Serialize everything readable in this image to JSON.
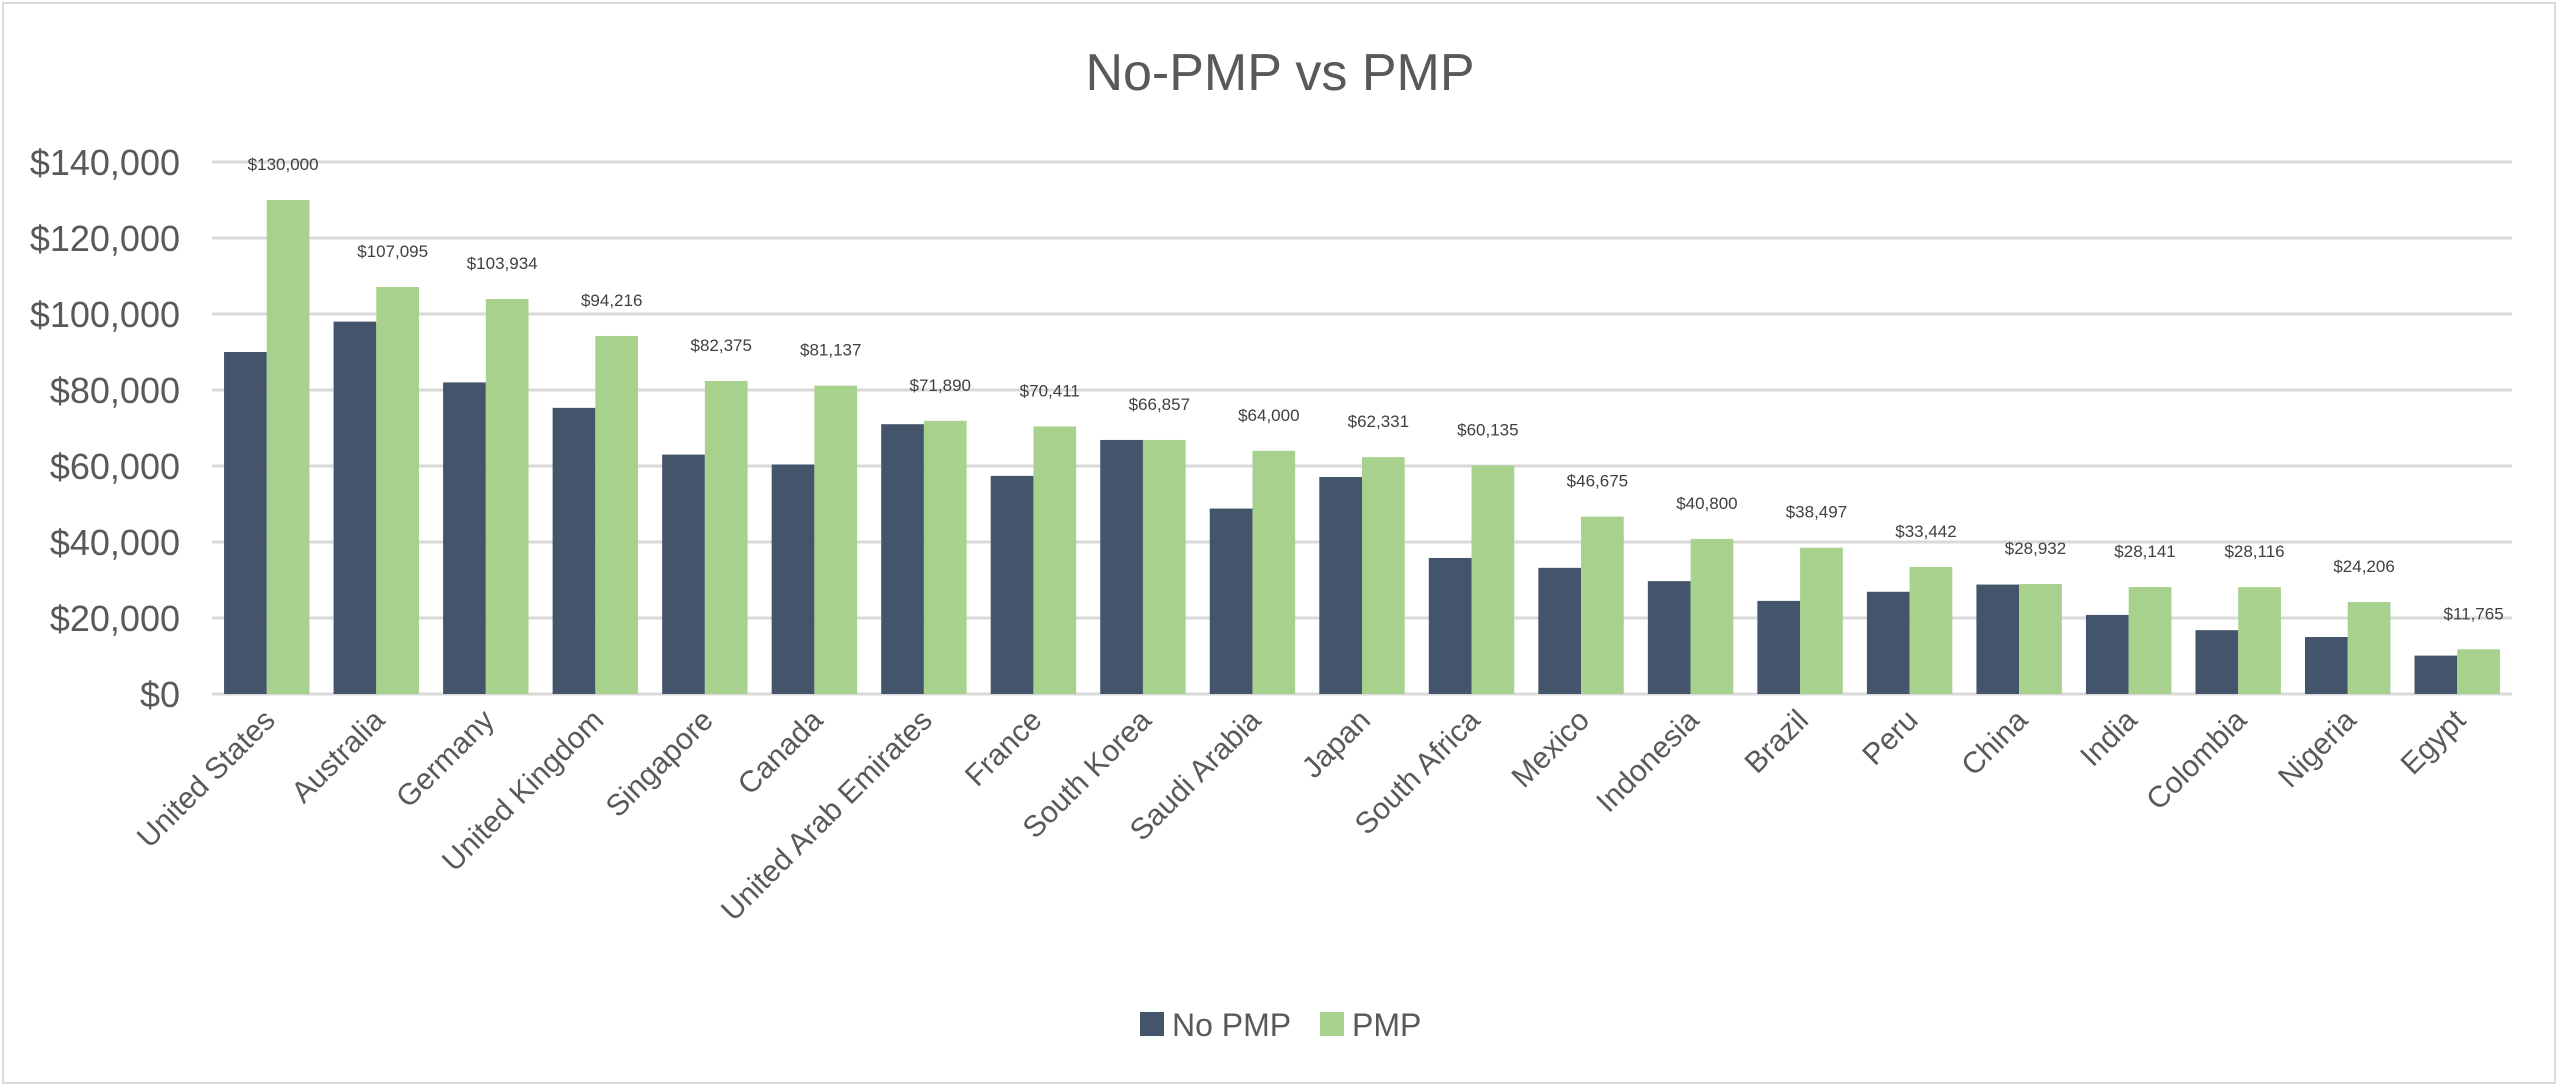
{
  "chart_data": {
    "type": "bar",
    "title": "No-PMP vs PMP",
    "xlabel": "",
    "ylabel": "",
    "ylim": [
      0,
      140000
    ],
    "yticks": [
      "$0",
      "$20,000",
      "$40,000",
      "$60,000",
      "$80,000",
      "$100,000",
      "$120,000",
      "$140,000"
    ],
    "grid": true,
    "legend_position": "bottom",
    "categories": [
      "United States",
      "Australia",
      "Germany",
      "United Kingdom",
      "Singapore",
      "Canada",
      "United Arab Emirates",
      "France",
      "South Korea",
      "Saudi Arabia",
      "Japan",
      "South Africa",
      "Mexico",
      "Indonesia",
      "Brazil",
      "Peru",
      "China",
      "India",
      "Colombia",
      "Nigeria",
      "Egypt"
    ],
    "series": [
      {
        "name": "No PMP",
        "color": "#44546a",
        "values": [
          90000,
          98000,
          82000,
          75300,
          63000,
          60400,
          71000,
          57400,
          66857,
          48800,
          57100,
          35800,
          33200,
          29700,
          24500,
          26900,
          28800,
          20800,
          16800,
          15000,
          10100
        ]
      },
      {
        "name": "PMP",
        "color": "#a9d18e",
        "values": [
          130000,
          107095,
          103934,
          94216,
          82375,
          81137,
          71890,
          70411,
          66857,
          64000,
          62331,
          60135,
          46675,
          40800,
          38497,
          33442,
          28932,
          28141,
          28116,
          24206,
          11765
        ],
        "data_labels": [
          "$130,000",
          "$107,095",
          "$103,934",
          "$94,216",
          "$82,375",
          "$81,137",
          "$71,890",
          "$70,411",
          "$66,857",
          "$64,000",
          "$62,331",
          "$60,135",
          "$46,675",
          "$40,800",
          "$38,497",
          "$33,442",
          "$28,932",
          "$28,141",
          "$28,116",
          "$24,206",
          "$11,765"
        ]
      }
    ]
  }
}
